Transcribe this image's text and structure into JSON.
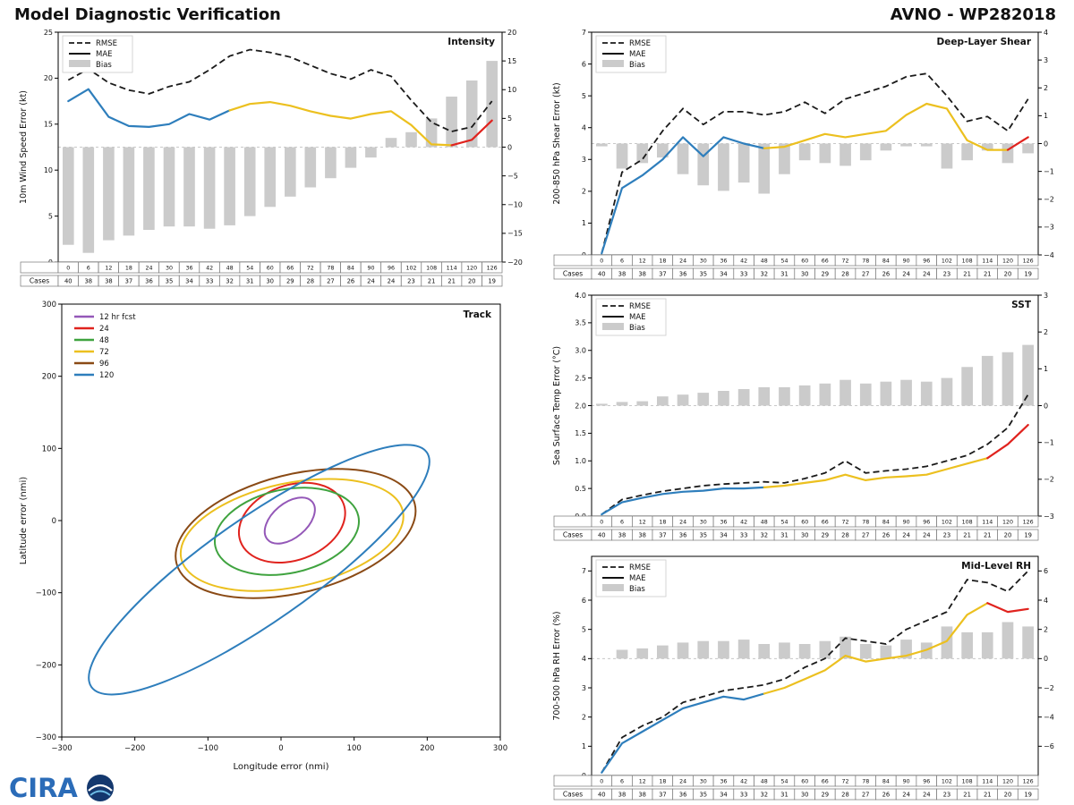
{
  "header": {
    "title": "Model Diagnostic Verification",
    "model": "AVNO - WP282018"
  },
  "logo": {
    "text": "CIRA"
  },
  "legend": {
    "rmse": "RMSE",
    "mae": "MAE",
    "bias": "Bias",
    "cases": "Cases"
  },
  "colors": {
    "rmse": "#1a1a1a",
    "bar": "#cbcbcb",
    "blue": "#2e7ebc",
    "gold": "#ecc01f",
    "red": "#e0231e",
    "zero_line": "#c8c8c8"
  },
  "hours": [
    0,
    6,
    12,
    18,
    24,
    30,
    36,
    42,
    48,
    54,
    60,
    66,
    72,
    78,
    84,
    90,
    96,
    102,
    108,
    114,
    120,
    126
  ],
  "cases": [
    40,
    38,
    38,
    37,
    36,
    35,
    34,
    33,
    32,
    31,
    30,
    29,
    28,
    27,
    26,
    24,
    24,
    23,
    21,
    21,
    20,
    19
  ],
  "chart_data": [
    {
      "type": "line",
      "name": "Intensity",
      "ylabel": "10m Wind Speed Error (kt)",
      "ylim": [
        0,
        25
      ],
      "yticks": [
        0,
        5,
        10,
        15,
        20,
        25
      ],
      "ytick_labels": [
        "0",
        "5",
        "10",
        "15",
        "20",
        "25"
      ],
      "y2lim": [
        -20,
        20
      ],
      "y2ticks": [
        -20,
        -15,
        -10,
        -5,
        0,
        5,
        10,
        15,
        20
      ],
      "rmse": [
        19.8,
        21.0,
        19.5,
        18.7,
        18.3,
        19.1,
        19.6,
        20.9,
        22.4,
        23.1,
        22.8,
        22.3,
        21.4,
        20.5,
        19.9,
        20.9,
        20.2,
        17.6,
        15.2,
        14.2,
        14.7,
        17.5
      ],
      "mae": [
        17.5,
        18.8,
        15.8,
        14.8,
        14.7,
        15.0,
        16.1,
        15.5,
        16.5,
        17.2,
        17.4,
        17.0,
        16.4,
        15.9,
        15.6,
        16.1,
        16.4,
        14.9,
        12.8,
        12.7,
        13.3,
        15.4
      ],
      "mae_runs": [
        [
          0,
          8,
          "blue"
        ],
        [
          8,
          19,
          "gold"
        ],
        [
          19,
          21,
          "red"
        ]
      ],
      "bias": [
        -17.0,
        -18.4,
        -16.2,
        -15.4,
        -14.4,
        -13.8,
        -13.8,
        -14.2,
        -13.6,
        -12.0,
        -10.4,
        -8.6,
        -7.0,
        -5.4,
        -3.6,
        -1.8,
        1.6,
        2.6,
        5.0,
        8.8,
        11.6,
        15.0
      ]
    },
    {
      "type": "line",
      "name": "Deep-Layer Shear",
      "ylabel": "200-850 hPa Shear Error (kt)",
      "ylim": [
        0,
        7
      ],
      "yticks": [
        0,
        1,
        2,
        3,
        4,
        5,
        6,
        7
      ],
      "ytick_labels": [
        "0",
        "1",
        "2",
        "3",
        "4",
        "5",
        "6",
        "7"
      ],
      "y2lim": [
        -4,
        4
      ],
      "y2ticks": [
        -4,
        -3,
        -2,
        -1,
        0,
        1,
        2,
        3,
        4
      ],
      "rmse": [
        0.05,
        2.6,
        3.0,
        3.9,
        4.6,
        4.1,
        4.5,
        4.5,
        4.4,
        4.5,
        4.8,
        4.45,
        4.9,
        5.1,
        5.3,
        5.6,
        5.7,
        5.0,
        4.2,
        4.35,
        3.9,
        4.9
      ],
      "mae": [
        0.05,
        2.1,
        2.5,
        3.0,
        3.7,
        3.1,
        3.7,
        3.5,
        3.35,
        3.4,
        3.6,
        3.8,
        3.7,
        3.8,
        3.9,
        4.4,
        4.75,
        4.6,
        3.6,
        3.3,
        3.3,
        3.7
      ],
      "mae_runs": [
        [
          0,
          8,
          "blue"
        ],
        [
          8,
          20,
          "gold"
        ],
        [
          20,
          21,
          "red"
        ]
      ],
      "bias": [
        -0.1,
        -0.9,
        -0.7,
        -0.5,
        -1.1,
        -1.5,
        -1.7,
        -1.4,
        -1.8,
        -1.1,
        -0.6,
        -0.7,
        -0.8,
        -0.6,
        -0.25,
        -0.1,
        -0.1,
        -0.9,
        -0.6,
        -0.25,
        -0.7,
        -0.35
      ]
    },
    {
      "type": "line",
      "name": "SST",
      "ylabel": "Sea Surface Temp Error (°C)",
      "ylim": [
        0,
        4
      ],
      "yticks": [
        0,
        0.5,
        1.0,
        1.5,
        2.0,
        2.5,
        3.0,
        3.5,
        4.0
      ],
      "ytick_labels": [
        "0.0",
        "0.5",
        "1.0",
        "1.5",
        "2.0",
        "2.5",
        "3.0",
        "3.5",
        "4.0"
      ],
      "y2lim": [
        -3,
        3
      ],
      "y2ticks": [
        -3,
        -2,
        -1,
        0,
        1,
        2,
        3
      ],
      "rmse": [
        0.03,
        0.3,
        0.38,
        0.45,
        0.5,
        0.55,
        0.58,
        0.6,
        0.62,
        0.6,
        0.68,
        0.78,
        1.0,
        0.78,
        0.82,
        0.85,
        0.9,
        1.0,
        1.1,
        1.3,
        1.6,
        2.2
      ],
      "mae": [
        0.03,
        0.25,
        0.33,
        0.4,
        0.44,
        0.46,
        0.5,
        0.5,
        0.52,
        0.55,
        0.6,
        0.65,
        0.75,
        0.65,
        0.7,
        0.72,
        0.75,
        0.85,
        0.95,
        1.05,
        1.3,
        1.65
      ],
      "mae_runs": [
        [
          0,
          8,
          "blue"
        ],
        [
          8,
          19,
          "gold"
        ],
        [
          19,
          21,
          "red"
        ]
      ],
      "bias": [
        0.05,
        0.1,
        0.12,
        0.25,
        0.3,
        0.35,
        0.4,
        0.45,
        0.5,
        0.5,
        0.55,
        0.6,
        0.7,
        0.6,
        0.65,
        0.7,
        0.65,
        0.75,
        1.05,
        1.35,
        1.45,
        1.65
      ]
    },
    {
      "type": "line",
      "name": "Mid-Level RH",
      "ylabel": "700-500 hPa RH Error (%)",
      "ylim": [
        0,
        7.5
      ],
      "yticks": [
        0,
        1,
        2,
        3,
        4,
        5,
        6,
        7
      ],
      "ytick_labels": [
        "0",
        "1",
        "2",
        "3",
        "4",
        "5",
        "6",
        "7"
      ],
      "y2lim": [
        -8,
        7
      ],
      "y2ticks": [
        -6,
        -4,
        -2,
        0,
        2,
        4,
        6
      ],
      "rmse": [
        0.1,
        1.3,
        1.7,
        2.0,
        2.5,
        2.7,
        2.9,
        3.0,
        3.1,
        3.3,
        3.7,
        4.0,
        4.7,
        4.6,
        4.5,
        5.0,
        5.3,
        5.6,
        6.7,
        6.6,
        6.3,
        7.0
      ],
      "mae": [
        0.1,
        1.1,
        1.5,
        1.9,
        2.3,
        2.5,
        2.7,
        2.6,
        2.8,
        3.0,
        3.3,
        3.6,
        4.1,
        3.9,
        4.0,
        4.1,
        4.3,
        4.6,
        5.5,
        5.9,
        5.6,
        5.7
      ],
      "mae_runs": [
        [
          0,
          8,
          "blue"
        ],
        [
          8,
          19,
          "gold"
        ],
        [
          19,
          21,
          "red"
        ]
      ],
      "bias": [
        0.0,
        0.6,
        0.7,
        0.9,
        1.1,
        1.2,
        1.2,
        1.3,
        1.0,
        1.1,
        1.0,
        1.2,
        1.5,
        1.0,
        0.9,
        1.3,
        1.1,
        2.2,
        1.8,
        1.8,
        2.5,
        2.2
      ]
    },
    {
      "type": "track",
      "name": "Track",
      "xlabel": "Longitude error (nmi)",
      "ylabel": "Latitude error (nmi)",
      "xlim": [
        -300,
        300
      ],
      "ylim": [
        -300,
        300
      ],
      "ticks": [
        -300,
        -200,
        -100,
        0,
        100,
        200,
        300
      ],
      "ellipses": [
        {
          "label": "12 hr fcst",
          "color": "#9458b8",
          "cx": 12,
          "cy": 0,
          "a": 40,
          "b": 24,
          "angle": 40
        },
        {
          "label": "24",
          "color": "#e0231e",
          "cx": 15,
          "cy": -3,
          "a": 75,
          "b": 52,
          "angle": 20
        },
        {
          "label": "48",
          "color": "#3fa33f",
          "cx": 8,
          "cy": -15,
          "a": 100,
          "b": 58,
          "angle": 12
        },
        {
          "label": "72",
          "color": "#ecc01f",
          "cx": 15,
          "cy": -20,
          "a": 155,
          "b": 72,
          "angle": 12
        },
        {
          "label": "96",
          "color": "#8a4a15",
          "cx": 20,
          "cy": -18,
          "a": 168,
          "b": 82,
          "angle": 14
        },
        {
          "label": "120",
          "color": "#2e7ebc",
          "cx": -30,
          "cy": -68,
          "a": 280,
          "b": 72,
          "angle": 35
        }
      ]
    }
  ]
}
